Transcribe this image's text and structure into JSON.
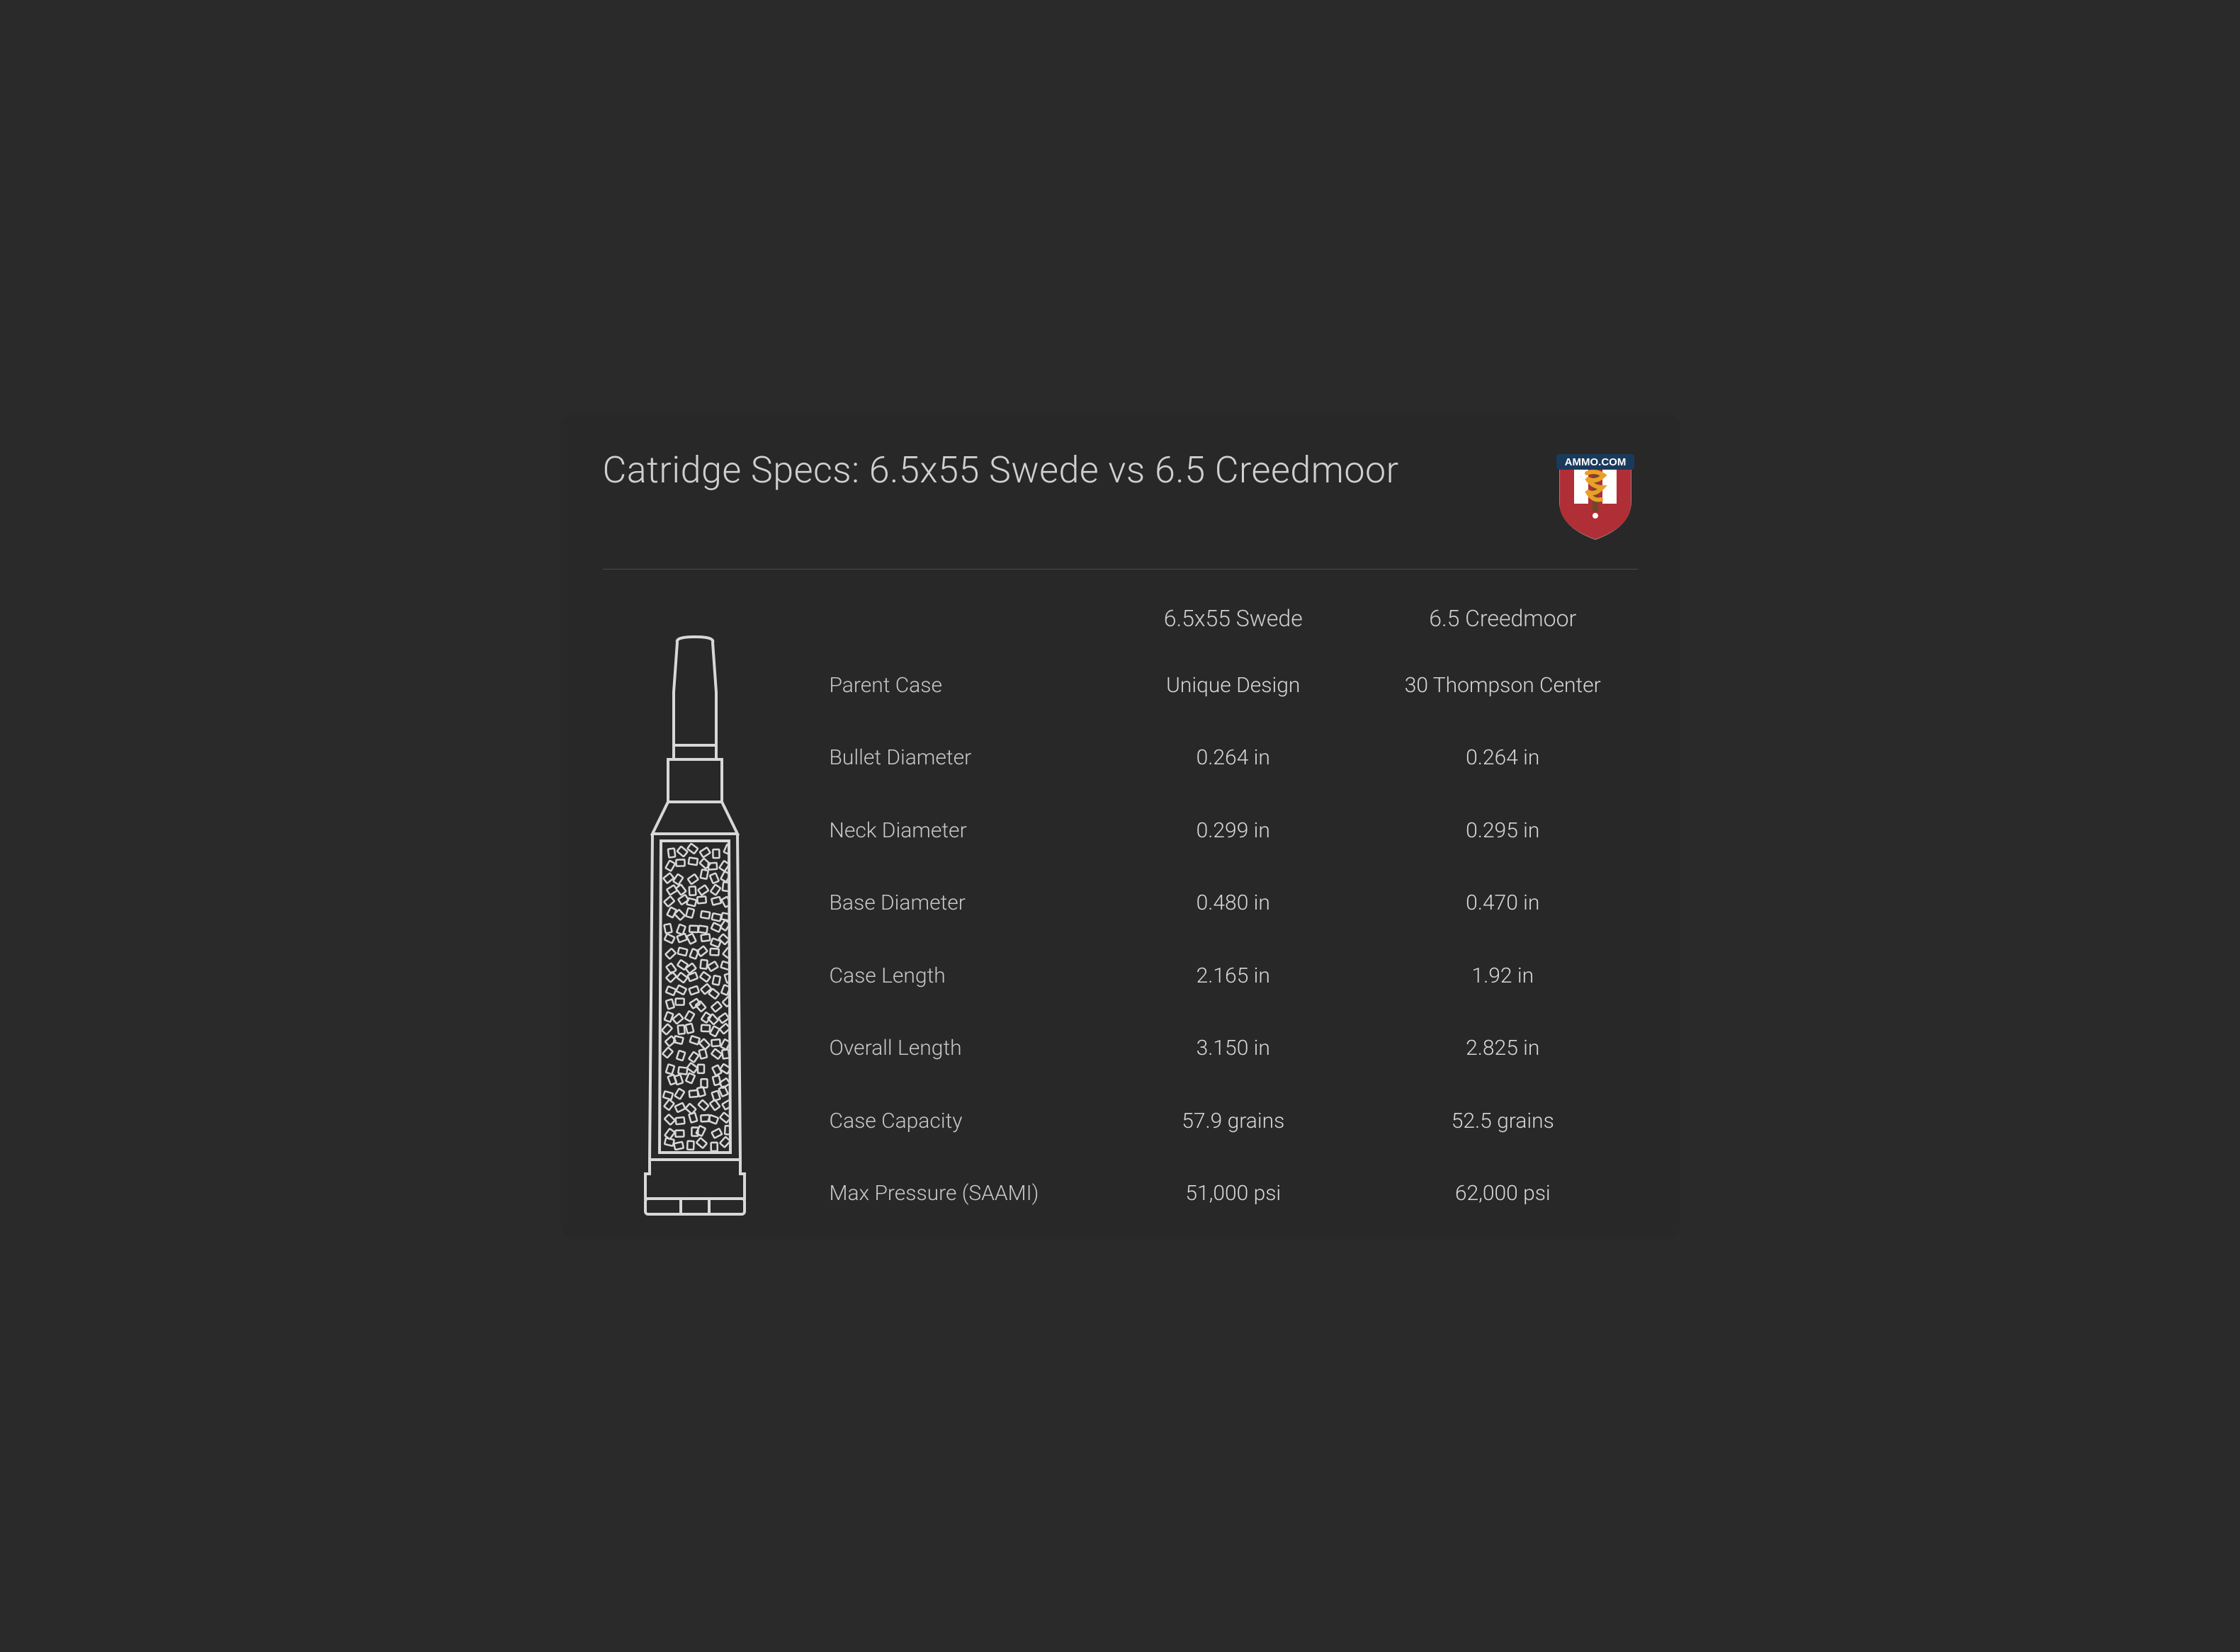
{
  "title": "Catridge Specs: 6.5x55 Swede vs 6.5 Creedmoor",
  "logo": {
    "text": "AMMO.COM",
    "shield_stripes": [
      "#b02e35",
      "#ffffff",
      "#b02e35",
      "#ffffff",
      "#b02e35"
    ],
    "banner_bg": "#1a3a5c",
    "banner_text_color": "#ffffff",
    "snake_color": "#e8a028",
    "staff_color": "#6b4a2a"
  },
  "columns": {
    "col1": "6.5x55 Swede",
    "col2": "6.5 Creedmoor"
  },
  "specs": [
    {
      "label": "Parent Case",
      "v1": "Unique Design",
      "v2": "30 Thompson Center"
    },
    {
      "label": "Bullet Diameter",
      "v1": "0.264 in",
      "v2": "0.264 in"
    },
    {
      "label": "Neck Diameter",
      "v1": "0.299 in",
      "v2": "0.295 in"
    },
    {
      "label": "Base Diameter",
      "v1": "0.480 in",
      "v2": "0.470 in"
    },
    {
      "label": "Case Length",
      "v1": "2.165 in",
      "v2": "1.92 in"
    },
    {
      "label": "Overall Length",
      "v1": "3.150 in",
      "v2": "2.825 in"
    },
    {
      "label": "Case Capacity",
      "v1": "57.9 grains",
      "v2": "52.5 grains"
    },
    {
      "label": "Max Pressure (SAAMI)",
      "v1": "51,000 psi",
      "v2": "62,000 psi"
    }
  ],
  "styling": {
    "background_color": "#282828",
    "text_color": "#c8c8c8",
    "title_color": "#d0d0d0",
    "divider_color": "#4a4a4a",
    "bullet_outline_color": "#d8d8d8",
    "title_fontsize": 52,
    "header_fontsize": 32,
    "body_fontsize": 30,
    "card_radius": 20
  }
}
